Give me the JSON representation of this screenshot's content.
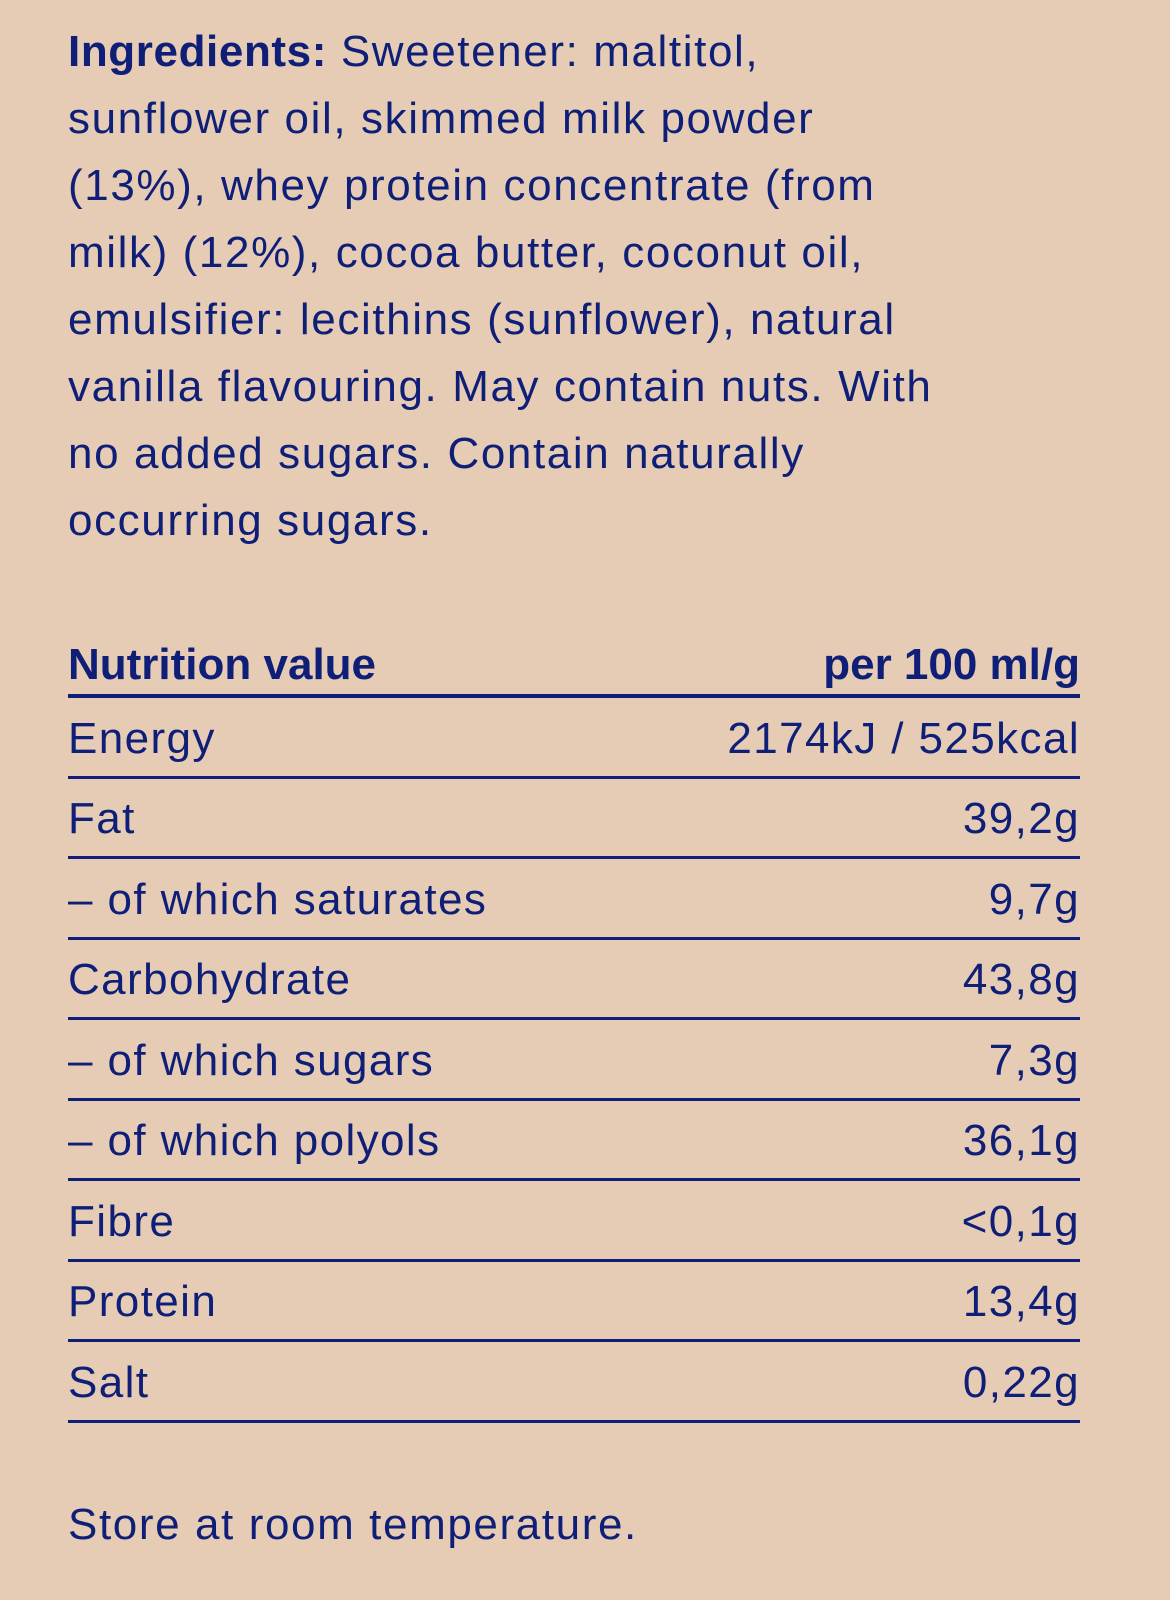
{
  "ingredients": {
    "label": "Ingredients:",
    "lines": [
      " Sweetener: maltitol,",
      "sunflower oil, skimmed milk powder",
      "(13%), whey protein concentrate (from",
      "milk) (12%), cocoa butter, coconut oil,",
      "emulsifier: lecithins (sunflower), natural",
      "vanilla flavouring. May contain nuts. With",
      "no added sugars. Contain naturally",
      "occurring sugars."
    ]
  },
  "nutrition": {
    "header_label": "Nutrition value",
    "header_unit": "per 100 ml/g",
    "rows": [
      {
        "name": "Energy",
        "value": "2174kJ / 525kcal"
      },
      {
        "name": "Fat",
        "value": "39,2g"
      },
      {
        "name": "– of which saturates",
        "value": "9,7g"
      },
      {
        "name": "Carbohydrate",
        "value": "43,8g"
      },
      {
        "name": "– of which sugars",
        "value": "7,3g"
      },
      {
        "name": "– of which polyols",
        "value": "36,1g"
      },
      {
        "name": "Fibre",
        "value": "<0,1g"
      },
      {
        "name": "Protein",
        "value": "13,4g"
      },
      {
        "name": "Salt",
        "value": "0,22g"
      }
    ]
  },
  "footer": "Store at room temperature.",
  "colors": {
    "background": "#E6CCB5",
    "text": "#0F1F78"
  }
}
